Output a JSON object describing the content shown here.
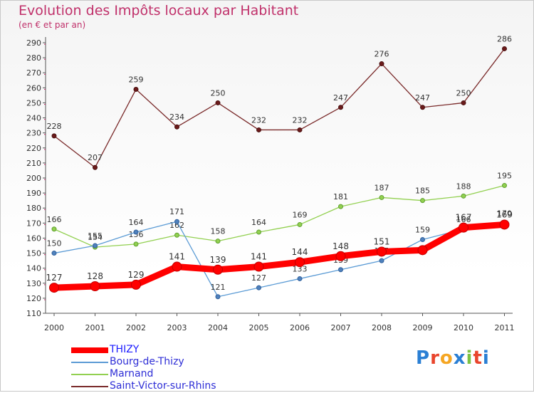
{
  "title": "Evolution des Impôts locaux par Habitant",
  "subtitle": "(en € et par an)",
  "logo": {
    "text": "Proxiti",
    "letter_colors": [
      "#2a7fd4",
      "#e9452d",
      "#f5a623",
      "#2a7fd4",
      "#7cc242",
      "#e9452d",
      "#2a7fd4"
    ]
  },
  "chart_data": {
    "type": "line",
    "title": "Evolution des Impôts locaux par Habitant",
    "subtitle": "(en € et par an)",
    "x": [
      "2000",
      "2001",
      "2002",
      "2003",
      "2004",
      "2005",
      "2006",
      "2007",
      "2008",
      "2009",
      "2010",
      "2011"
    ],
    "ylim": [
      110,
      290
    ],
    "ytick_step": 10,
    "grid": false,
    "legend_position": "bottom-left",
    "series": [
      {
        "name": "THIZY",
        "color": "#ff0000",
        "values": [
          127,
          128,
          129,
          141,
          139,
          141,
          144,
          148,
          151,
          152,
          167,
          169
        ],
        "labels": [
          "127",
          "128",
          "129",
          "141",
          "139",
          "141",
          "144",
          "148",
          "151",
          "",
          "167",
          "169"
        ]
      },
      {
        "name": "Bourg-de-Thizy",
        "color": "#5b9bd5",
        "values": [
          150,
          155,
          164,
          171,
          121,
          127,
          133,
          139,
          145,
          159,
          166,
          170
        ],
        "labels": [
          "150",
          "155",
          "164",
          "171",
          "121",
          "127",
          "133",
          "139",
          "145",
          "159",
          "166",
          "170"
        ]
      },
      {
        "name": "Marnand",
        "color": "#92d050",
        "values": [
          166,
          154,
          156,
          162,
          158,
          164,
          169,
          181,
          187,
          185,
          188,
          195
        ],
        "labels": [
          "166",
          "154",
          "156",
          "162",
          "158",
          "164",
          "169",
          "181",
          "187",
          "185",
          "188",
          "195"
        ]
      },
      {
        "name": "Saint-Victor-sur-Rhins",
        "color": "#7a2a2a",
        "values": [
          228,
          207,
          259,
          234,
          250,
          232,
          232,
          247,
          276,
          247,
          250,
          286
        ],
        "labels": [
          "228",
          "207",
          "259",
          "234",
          "250",
          "232",
          "232",
          "247",
          "276",
          "247",
          "250",
          "286"
        ]
      }
    ]
  }
}
